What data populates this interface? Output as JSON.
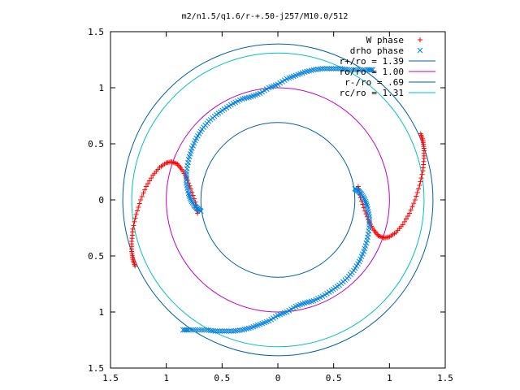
{
  "chart_data": {
    "type": "scatter",
    "title": "m2/n1.5/q1.6/r-+.50-j257/M10.0/512",
    "xlim": [
      -1.5,
      1.5
    ],
    "ylim": [
      -1.5,
      1.5
    ],
    "x_tick_labels": [
      "1.5",
      "1",
      "0.5",
      "0",
      "0.5",
      "1",
      "1.5"
    ],
    "y_tick_labels": [
      "1.5",
      "1",
      "0.5",
      "0",
      "0.5",
      "1",
      "1.5"
    ],
    "x_ticks": [
      -1.5,
      -1.0,
      -0.5,
      0,
      0.5,
      1.0,
      1.5
    ],
    "y_ticks": [
      1.5,
      1.0,
      0.5,
      0,
      -0.5,
      -1.0,
      -1.5
    ],
    "grid": false,
    "legend_position": "top-right",
    "legend": [
      {
        "label": "W phase",
        "symbol": "plus",
        "color": "#ff0000"
      },
      {
        "label": "drho phase",
        "symbol": "cross",
        "color": "#0080e0"
      },
      {
        "label": "r+/ro = 1.39",
        "symbol": "line",
        "color": "#0060a0"
      },
      {
        "label": "ro/ro = 1.00",
        "symbol": "line",
        "color": "#c000c0"
      },
      {
        "label": "r-/ro = .69",
        "symbol": "line",
        "color": "#0060a0"
      },
      {
        "label": "rc/ro = 1.31",
        "symbol": "line",
        "color": "#00c0c0"
      }
    ],
    "circles": [
      {
        "name": "r+/ro",
        "radius": 1.39,
        "color": "#0060a0"
      },
      {
        "name": "ro/ro",
        "radius": 1.0,
        "color": "#c000c0"
      },
      {
        "name": "r-/ro",
        "radius": 0.69,
        "color": "#0060a0"
      },
      {
        "name": "rc/ro",
        "radius": 1.31,
        "color": "#00c0c0"
      }
    ],
    "series": [
      {
        "name": "W phase",
        "color": "#ff0000",
        "arms": [
          {
            "x": [
              -0.72,
              -0.74,
              -0.78,
              -0.82,
              -0.86,
              -0.9,
              -0.95,
              -1.0,
              -1.06,
              -1.12,
              -1.18,
              -1.23,
              -1.27,
              -1.3,
              -1.31,
              -1.31,
              -1.3,
              -1.28
            ],
            "y": [
              -0.12,
              -0.02,
              0.1,
              0.2,
              0.27,
              0.32,
              0.34,
              0.33,
              0.29,
              0.22,
              0.12,
              0.0,
              -0.13,
              -0.26,
              -0.37,
              -0.46,
              -0.53,
              -0.59
            ]
          },
          {
            "x": [
              0.72,
              0.74,
              0.78,
              0.82,
              0.86,
              0.9,
              0.95,
              1.0,
              1.06,
              1.12,
              1.18,
              1.23,
              1.27,
              1.3,
              1.31,
              1.31,
              1.3,
              1.28
            ],
            "y": [
              0.12,
              0.02,
              -0.1,
              -0.2,
              -0.27,
              -0.32,
              -0.34,
              -0.33,
              -0.29,
              -0.22,
              -0.12,
              0.0,
              0.13,
              0.26,
              0.37,
              0.46,
              0.53,
              0.59
            ]
          }
        ]
      },
      {
        "name": "drho phase",
        "color": "#0080e0",
        "arms": [
          {
            "x": [
              -0.69,
              -0.72,
              -0.75,
              -0.78,
              -0.8,
              -0.82,
              -0.82,
              -0.8,
              -0.77,
              -0.73,
              -0.68,
              -0.62,
              -0.55,
              -0.48,
              -0.4,
              -0.32,
              -0.24,
              -0.16,
              -0.08,
              0.0,
              0.08,
              0.16,
              0.24,
              0.32,
              0.4,
              0.48,
              0.56,
              0.64,
              0.72,
              0.8,
              0.85
            ],
            "y": [
              -0.1,
              -0.08,
              -0.05,
              0.0,
              0.06,
              0.15,
              0.25,
              0.36,
              0.46,
              0.55,
              0.63,
              0.7,
              0.76,
              0.81,
              0.86,
              0.9,
              0.92,
              0.95,
              1.0,
              1.03,
              1.08,
              1.11,
              1.14,
              1.16,
              1.17,
              1.17,
              1.17,
              1.16,
              1.16,
              1.16,
              1.16
            ]
          },
          {
            "x": [
              0.69,
              0.72,
              0.75,
              0.78,
              0.8,
              0.82,
              0.82,
              0.8,
              0.77,
              0.73,
              0.68,
              0.62,
              0.55,
              0.48,
              0.4,
              0.32,
              0.24,
              0.16,
              0.08,
              0.0,
              -0.08,
              -0.16,
              -0.24,
              -0.32,
              -0.4,
              -0.48,
              -0.56,
              -0.64,
              -0.72,
              -0.8,
              -0.85
            ],
            "y": [
              0.1,
              0.08,
              0.05,
              0.0,
              -0.06,
              -0.15,
              -0.25,
              -0.36,
              -0.46,
              -0.55,
              -0.63,
              -0.7,
              -0.76,
              -0.81,
              -0.86,
              -0.9,
              -0.92,
              -0.95,
              -1.0,
              -1.03,
              -1.08,
              -1.11,
              -1.14,
              -1.16,
              -1.17,
              -1.17,
              -1.17,
              -1.16,
              -1.16,
              -1.16,
              -1.16
            ]
          }
        ]
      }
    ]
  }
}
